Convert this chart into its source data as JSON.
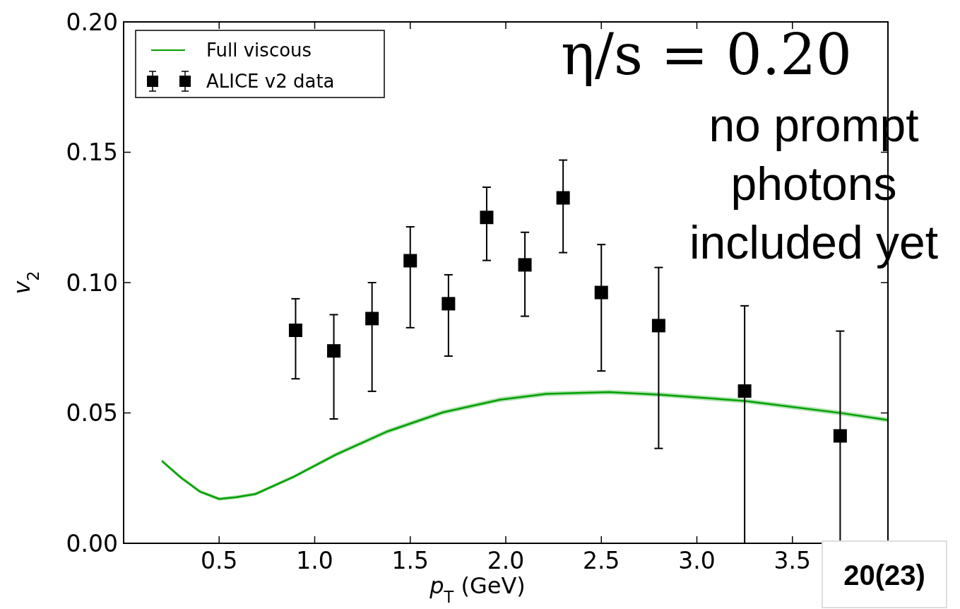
{
  "chart_data": {
    "type": "scatter",
    "xlabel": "p$_{T}$ (GeV)",
    "ylabel": "v$_{2}$",
    "xlim": [
      0,
      4.0
    ],
    "ylim": [
      0,
      0.2
    ],
    "xticks": [
      0.5,
      {
        "value": 1,
        "label": "1.0"
      },
      1.5,
      {
        "value": 2,
        "label": "2.0"
      },
      2.5,
      {
        "value": 3,
        "label": "3.0"
      },
      3.5
    ],
    "yticks": [
      {
        "value": 0,
        "label": "0.00"
      },
      {
        "value": 0.05,
        "label": "0.05"
      },
      {
        "value": 0.1,
        "label": "0.10"
      },
      {
        "value": 0.15,
        "label": "0.15"
      },
      {
        "value": 0.2,
        "label": "0.20"
      }
    ],
    "legend": "top left",
    "grid": false,
    "series": [
      {
        "name": "Full viscous",
        "type": "line",
        "marker": "none",
        "line_style": "solid",
        "color": "#00a000",
        "x": [
          0.2,
          0.3,
          0.4,
          0.5,
          0.59,
          0.69,
          0.89,
          1.11,
          1.38,
          1.67,
          1.97,
          2.21,
          2.54,
          2.81,
          3.25,
          3.76,
          4.0
        ],
        "values": [
          0.0316,
          0.0252,
          0.0198,
          0.017,
          0.0177,
          0.0189,
          0.0255,
          0.034,
          0.0429,
          0.0502,
          0.0551,
          0.0573,
          0.058,
          0.057,
          0.0546,
          0.0499,
          0.0473
        ],
        "lower": [
          0.0309,
          0.0245,
          0.0191,
          0.0163,
          0.017,
          0.0182,
          0.0248,
          0.0332,
          0.042,
          0.0493,
          0.0542,
          0.0564,
          0.0571,
          0.0561,
          0.0537,
          0.049,
          0.0464
        ],
        "upper": [
          0.0323,
          0.0259,
          0.0205,
          0.0177,
          0.0184,
          0.0196,
          0.0262,
          0.0348,
          0.0438,
          0.0511,
          0.056,
          0.0582,
          0.0589,
          0.0579,
          0.0555,
          0.0508,
          0.0482
        ]
      },
      {
        "name": "ALICE v2 data",
        "marker": "square",
        "color": "#000000",
        "x": [
          0.9,
          1.1,
          1.3,
          1.5,
          1.7,
          1.9,
          2.1,
          2.3,
          2.5,
          2.8,
          3.25,
          3.75
        ],
        "values": [
          0.0817,
          0.0738,
          0.0862,
          0.1084,
          0.0919,
          0.125,
          0.1068,
          0.1325,
          0.0962,
          0.0835,
          0.0584,
          0.0412
        ],
        "errors": [
          [
            0.0631,
            0.0938
          ],
          [
            0.0477,
            0.0877
          ],
          [
            0.0583,
            0.1
          ],
          [
            0.0827,
            0.1214
          ],
          [
            0.0718,
            0.103
          ],
          [
            0.1085,
            0.1366
          ],
          [
            0.0871,
            0.1193
          ],
          [
            0.1115,
            0.147
          ],
          [
            0.0661,
            0.1146
          ],
          [
            0.0364,
            0.1058
          ],
          [
            0,
            0.0911
          ],
          [
            0,
            0.0814
          ]
        ]
      }
    ],
    "annotations": [
      "η/s = 0.20",
      "no prompt photons included yet",
      "20(23)"
    ]
  }
}
